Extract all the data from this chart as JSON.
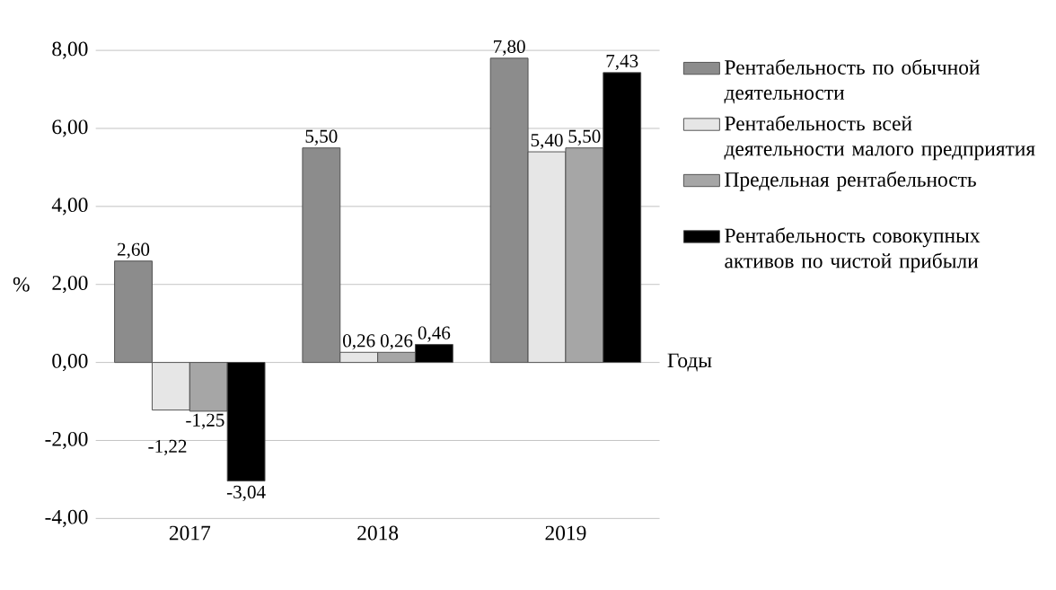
{
  "chart_data": {
    "type": "bar",
    "categories": [
      "2017",
      "2018",
      "2019"
    ],
    "series": [
      {
        "name": "Рентабельность по обычной деятельности",
        "color": "#8c8c8c",
        "values": [
          2.6,
          5.5,
          7.8
        ],
        "value_labels": [
          "2,60",
          "5,50",
          "7,80"
        ]
      },
      {
        "name": "Рентабельность всей деятельности малого предприятия",
        "color": "#e6e6e6",
        "values": [
          -1.22,
          0.26,
          5.4
        ],
        "value_labels": [
          "-1,22",
          "0,26",
          "5,40"
        ]
      },
      {
        "name": "Предельная рентабельность",
        "color": "#a6a6a6",
        "values": [
          -1.25,
          0.26,
          5.5
        ],
        "value_labels": [
          "-1,25",
          "0,26",
          "5,50"
        ]
      },
      {
        "name": "Рентабельность совокупных активов по чистой прибыли",
        "color": "#000000",
        "values": [
          -3.04,
          0.46,
          7.43
        ],
        "value_labels": [
          "-3,04",
          "0,46",
          "7,43"
        ]
      }
    ],
    "ylabel": "%",
    "xlabel": "Годы",
    "ylim": [
      -4,
      8
    ],
    "yticks": [
      {
        "value": -4,
        "label": "-4,00"
      },
      {
        "value": -2,
        "label": "-2,00"
      },
      {
        "value": 0,
        "label": "0,00"
      },
      {
        "value": 2,
        "label": "2,00"
      },
      {
        "value": 4,
        "label": "4,00"
      },
      {
        "value": 6,
        "label": "6,00"
      },
      {
        "value": 8,
        "label": "8,00"
      }
    ],
    "grid": "y",
    "legend": "right"
  }
}
